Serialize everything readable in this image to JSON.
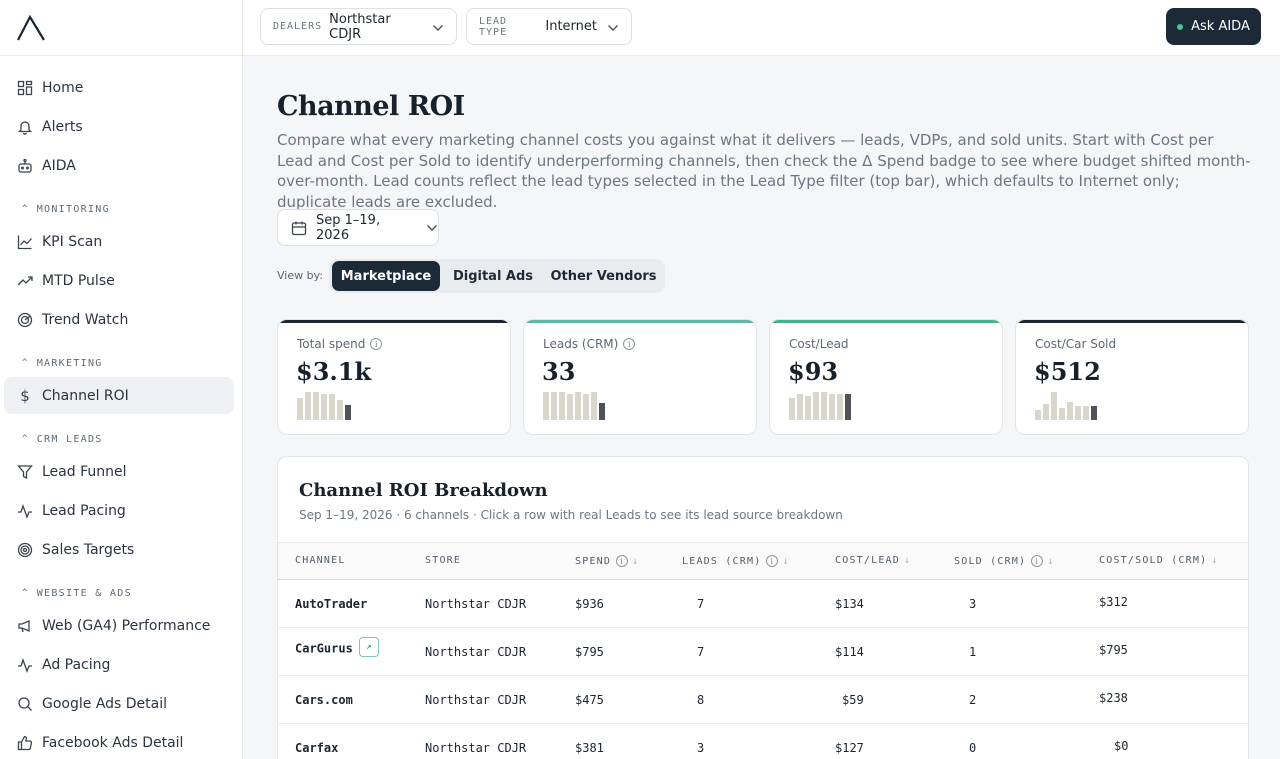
{
  "topbar": {
    "dealers_label": "DEALERS",
    "dealers_value": "Northstar CDJR",
    "lead_type_label": "LEAD TYPE",
    "lead_type_value": "Internet",
    "ask_label": "Ask AIDA"
  },
  "sidebar": {
    "top_items": [
      {
        "label": "Home",
        "icon": "grid-icon"
      },
      {
        "label": "Alerts",
        "icon": "bell-icon"
      },
      {
        "label": "AIDA",
        "icon": "robot-icon"
      }
    ],
    "sections": [
      {
        "title": "MONITORING",
        "items": [
          "KPI Scan",
          "MTD Pulse",
          "Trend Watch"
        ]
      },
      {
        "title": "MARKETING",
        "items": [
          "Channel ROI"
        ]
      },
      {
        "title": "CRM LEADS",
        "items": [
          "Lead Funnel",
          "Lead Pacing",
          "Sales Targets"
        ]
      },
      {
        "title": "WEBSITE & ADS",
        "items": [
          "Web (GA4) Performance",
          "Ad Pacing",
          "Google Ads Detail",
          "Facebook Ads Detail"
        ]
      }
    ],
    "active": "Channel ROI"
  },
  "page": {
    "title": "Channel ROI",
    "description": "Compare what every marketing channel costs you against what it delivers — leads, VDPs, and sold units. Start with Cost per Lead and Cost per Sold to identify underperforming channels, then check the Δ Spend badge to see where budget shifted month-over-month. Lead counts reflect the lead types selected in the Lead Type filter (top bar), which defaults to Internet only; duplicate leads are excluded.",
    "date_range": "Sep 1–19, 2026",
    "view_by_label": "View by:",
    "view_tabs": [
      "Marketplace",
      "Digital Ads",
      "Other Vendors"
    ],
    "active_view": "Marketplace"
  },
  "kpis": [
    {
      "label": "Total spend",
      "value": "$3.1k",
      "info": true,
      "accent": "#1c2530"
    },
    {
      "label": "Leads (CRM)",
      "value": "33",
      "info": true,
      "accent": "#5fb8a0"
    },
    {
      "label": "Cost/Lead",
      "value": "$93",
      "info": false,
      "accent": "#45b38a"
    },
    {
      "label": "Cost/Car Sold",
      "value": "$512",
      "info": false,
      "accent": "#1c2530"
    }
  ],
  "breakdown": {
    "title": "Channel ROI Breakdown",
    "subtitle": "Sep 1–19, 2026 · 6 channels · Click a row with real Leads to see its lead source breakdown",
    "columns": [
      "CHANNEL",
      "STORE",
      "SPEND",
      "LEADS (CRM)",
      "COST/LEAD",
      "SOLD (CRM)",
      "COST/SOLD (CRM)"
    ],
    "rows": [
      {
        "channel": "AutoTrader",
        "store": "Northstar CDJR",
        "spend": "$936",
        "leads": "7",
        "cost_lead": "$134",
        "sold": "3",
        "cost_sold": "$312"
      },
      {
        "channel": "CarGurus",
        "store": "Northstar CDJR",
        "spend": "$795",
        "leads": "7",
        "cost_lead": "$114",
        "sold": "1",
        "cost_sold": "$795"
      },
      {
        "channel": "Cars.com",
        "store": "Northstar CDJR",
        "spend": "$475",
        "leads": "8",
        "cost_lead": "$59",
        "sold": "2",
        "cost_sold": "$238"
      },
      {
        "channel": "Carfax",
        "store": "Northstar CDJR",
        "spend": "$381",
        "leads": "3",
        "cost_lead": "$127",
        "sold": "0",
        "cost_sold": "$0"
      }
    ]
  }
}
